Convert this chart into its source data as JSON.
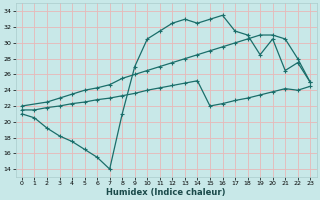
{
  "xlabel": "Humidex (Indice chaleur)",
  "bg_color": "#c8e8e8",
  "grid_color": "#e8b8b8",
  "line_color": "#1a6e6a",
  "xlim": [
    -0.5,
    23.5
  ],
  "ylim": [
    13,
    35
  ],
  "xticks": [
    0,
    1,
    2,
    3,
    4,
    5,
    6,
    7,
    8,
    9,
    10,
    11,
    12,
    13,
    14,
    15,
    16,
    17,
    18,
    19,
    20,
    21,
    22,
    23
  ],
  "yticks": [
    14,
    16,
    18,
    20,
    22,
    24,
    26,
    28,
    30,
    32,
    34
  ],
  "line1_x": [
    0,
    1,
    2,
    3,
    4,
    5,
    6,
    7,
    8,
    9,
    10,
    11,
    12,
    13,
    14,
    15,
    16,
    17,
    18,
    19,
    20,
    21,
    22,
    23
  ],
  "line1_y": [
    21.0,
    20.5,
    19.2,
    18.2,
    17.5,
    16.5,
    15.5,
    14.0,
    21.0,
    27.0,
    30.5,
    31.5,
    32.5,
    33.0,
    32.5,
    33.0,
    33.5,
    31.5,
    31.0,
    28.5,
    30.5,
    26.5,
    27.5,
    25.0
  ],
  "line2_x": [
    0,
    2,
    3,
    4,
    5,
    6,
    7,
    8,
    9,
    10,
    11,
    12,
    13,
    14,
    15,
    16,
    17,
    18,
    19,
    20,
    21,
    22,
    23
  ],
  "line2_y": [
    22.0,
    22.5,
    23.0,
    23.5,
    24.0,
    24.3,
    24.7,
    25.5,
    26.0,
    26.5,
    27.0,
    27.5,
    28.0,
    28.5,
    29.0,
    29.5,
    30.0,
    30.5,
    31.0,
    31.0,
    30.5,
    28.0,
    25.0
  ],
  "line3_x": [
    0,
    1,
    2,
    3,
    4,
    5,
    6,
    7,
    8,
    9,
    10,
    11,
    12,
    13,
    14,
    15,
    16,
    17,
    18,
    19,
    20,
    21,
    22,
    23
  ],
  "line3_y": [
    21.5,
    21.5,
    21.8,
    22.0,
    22.3,
    22.5,
    22.8,
    23.0,
    23.3,
    23.6,
    24.0,
    24.3,
    24.6,
    24.9,
    25.2,
    22.0,
    22.3,
    22.7,
    23.0,
    23.4,
    23.8,
    24.2,
    24.0,
    24.5
  ]
}
